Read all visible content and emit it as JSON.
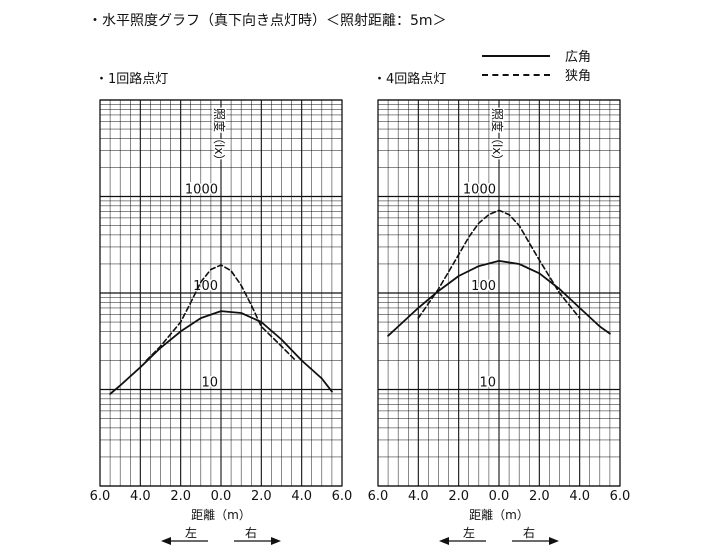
{
  "header": {
    "title": "・水平照度グラフ（真下向き点灯時）＜照射距離：5m＞"
  },
  "legend": {
    "wide": "広角",
    "narrow": "狭角"
  },
  "chart_data": [
    {
      "type": "line",
      "title": "・1回路点灯",
      "xlabel": "距離（m）",
      "ylabel": "照度（lx）",
      "x_tick_labels": [
        "6.0",
        "4.0",
        "2.0",
        "0.0",
        "2.0",
        "4.0",
        "6.0"
      ],
      "y_tick_labels": [
        "1000",
        "100",
        "10"
      ],
      "xlim": [
        -6,
        6
      ],
      "ylim_log10": [
        0,
        4
      ],
      "direction_left": "左",
      "direction_right": "右",
      "series": [
        {
          "name": "広角",
          "style": "solid",
          "x": [
            -5.5,
            -5.0,
            -4.0,
            -3.0,
            -2.0,
            -1.0,
            0.0,
            1.0,
            2.0,
            3.0,
            4.0,
            5.0,
            5.5
          ],
          "y": [
            9.0,
            11.0,
            17.0,
            27.0,
            40.0,
            55.0,
            65.0,
            62.0,
            50.0,
            33.0,
            20.0,
            13.0,
            9.5
          ]
        },
        {
          "name": "狭角",
          "style": "dashed",
          "x": [
            -3.7,
            -3.0,
            -2.0,
            -1.5,
            -1.0,
            -0.5,
            0.0,
            0.5,
            1.0,
            1.5,
            2.0,
            3.0,
            3.7
          ],
          "y": [
            20.0,
            28.0,
            50.0,
            80.0,
            130.0,
            175.0,
            195.0,
            170.0,
            120.0,
            75.0,
            45.0,
            28.0,
            20.0
          ]
        }
      ]
    },
    {
      "type": "line",
      "title": "・4回路点灯",
      "xlabel": "距離（m）",
      "ylabel": "照度（lx）",
      "x_tick_labels": [
        "6.0",
        "4.0",
        "2.0",
        "0.0",
        "2.0",
        "4.0",
        "6.0"
      ],
      "y_tick_labels": [
        "1000",
        "100",
        "10"
      ],
      "xlim": [
        -6,
        6
      ],
      "ylim_log10": [
        0,
        4
      ],
      "direction_left": "左",
      "direction_right": "右",
      "series": [
        {
          "name": "広角",
          "style": "solid",
          "x": [
            -5.5,
            -5.0,
            -4.0,
            -3.0,
            -2.0,
            -1.0,
            0.0,
            1.0,
            2.0,
            3.0,
            4.0,
            5.0,
            5.5
          ],
          "y": [
            36.0,
            45.0,
            70.0,
            105.0,
            150.0,
            190.0,
            215.0,
            200.0,
            160.0,
            110.0,
            70.0,
            45.0,
            38.0
          ]
        },
        {
          "name": "狭角",
          "style": "dashed",
          "x": [
            -4.0,
            -3.0,
            -2.0,
            -1.5,
            -1.0,
            -0.5,
            0.0,
            0.5,
            1.0,
            1.5,
            2.0,
            3.0,
            4.0
          ],
          "y": [
            55.0,
            110.0,
            250.0,
            380.0,
            530.0,
            650.0,
            720.0,
            650.0,
            500.0,
            330.0,
            220.0,
            100.0,
            55.0
          ]
        }
      ]
    }
  ]
}
